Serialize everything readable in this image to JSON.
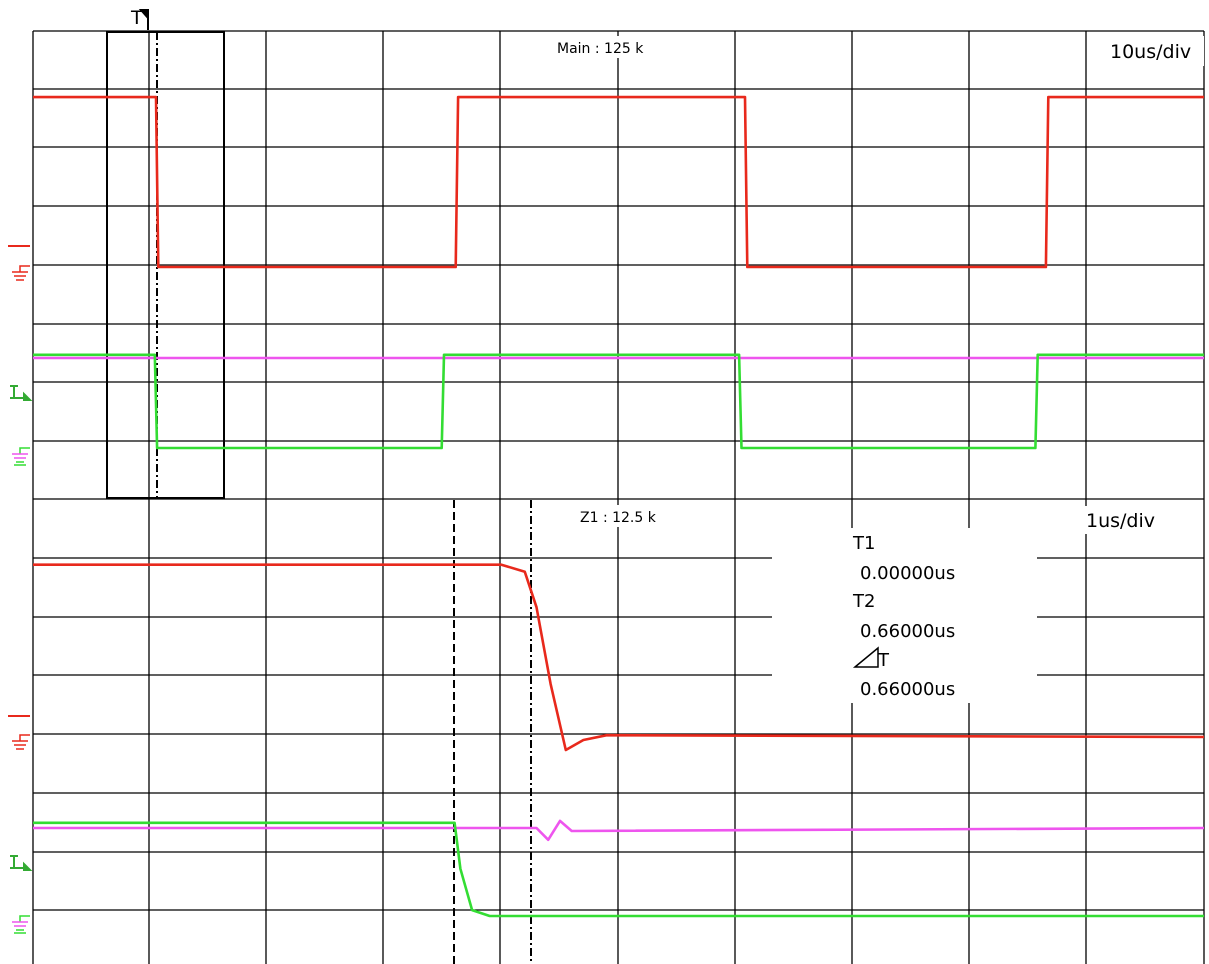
{
  "title": "",
  "colors": {
    "ch1": "#e8291c",
    "ch2": "#ee55ee",
    "ch3": "#33dd33",
    "grid": "#000000",
    "background": "#ffffff"
  },
  "main": {
    "label": "Main : 125 k",
    "timebase": "10us/div",
    "trigger_marker": "T"
  },
  "zoom": {
    "label": "Z1 : 12.5 k",
    "timebase": "1us/div"
  },
  "cursors": {
    "t1_label": "T1",
    "t1_value": "0.00000us",
    "t2_label": "T2",
    "t2_value": "0.66000us",
    "dt_label": "T",
    "dt_value": "0.66000us"
  },
  "chart_data": [
    {
      "type": "line",
      "title": "",
      "timebase": "10us/div",
      "grid": true,
      "series": [
        {
          "name": "",
          "color": "#e8291c",
          "x": [
            0,
            10.5,
            10.7,
            36.1,
            36.3,
            60.8,
            61.0,
            86.5,
            86.7,
            100
          ],
          "y": [
            2.88,
            2.88,
            0.0,
            0.0,
            2.88,
            2.88,
            0.0,
            0.0,
            2.88,
            2.88
          ]
        },
        {
          "name": "",
          "color": "#ee55ee",
          "x": [
            0,
            100
          ],
          "y": [
            0,
            0
          ]
        },
        {
          "name": "",
          "color": "#33dd33",
          "x": [
            0,
            10.4,
            10.6,
            34.9,
            35.1,
            60.3,
            60.5,
            85.6,
            85.8,
            100
          ],
          "y": [
            1.58,
            1.58,
            0.0,
            0.0,
            1.58,
            1.58,
            0.0,
            0.0,
            1.58,
            1.58
          ]
        }
      ]
    },
    {
      "type": "line",
      "title": "",
      "timebase": "1us/div",
      "grid": true,
      "series": [
        {
          "name": "",
          "color": "#e8291c",
          "x": [
            0,
            4.0,
            4.2,
            4.3,
            4.42,
            4.55,
            4.7,
            4.9,
            10
          ],
          "y": [
            2.92,
            2.92,
            2.8,
            2.2,
            0.9,
            -0.22,
            -0.05,
            0.03,
            0.0
          ]
        },
        {
          "name": "",
          "color": "#ee55ee",
          "x": [
            0,
            4.3,
            4.4,
            4.5,
            4.6,
            10
          ],
          "y": [
            0,
            0,
            -0.2,
            0.12,
            -0.05,
            0
          ]
        },
        {
          "name": "",
          "color": "#33dd33",
          "x": [
            0,
            3.6,
            3.65,
            3.75,
            3.9,
            10
          ],
          "y": [
            1.58,
            1.58,
            0.8,
            0.1,
            0.0,
            0.0
          ]
        }
      ]
    }
  ]
}
